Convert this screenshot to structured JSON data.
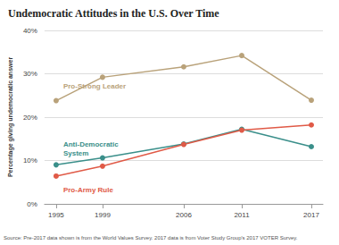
{
  "chart_data": {
    "type": "line",
    "title": "Undemocratic Attitudes in the U.S. Over Time",
    "y_label": "Percentage giving undemocratic answer",
    "source": "Source: Pre-2017 data shown is from the World Values Survey. 2017 data is from Voter Study Group's 2017 VOTER Survey.",
    "x": [
      1995,
      1999,
      2006,
      2011,
      2017
    ],
    "series": [
      {
        "name": "Pro-Strong Leader",
        "color": "#b9a27a",
        "values": [
          23.8,
          29.2,
          31.6,
          34.2,
          23.9
        ]
      },
      {
        "name": "Anti-Democratic System",
        "color": "#3a8f8a",
        "values": [
          9.0,
          10.6,
          13.8,
          17.2,
          13.2
        ]
      },
      {
        "name": "Pro-Army Rule",
        "color": "#e05a47",
        "values": [
          6.4,
          8.7,
          13.7,
          17.0,
          18.2
        ]
      }
    ],
    "xlim": [
      1994,
      2018
    ],
    "xticks": [
      1995,
      1999,
      2006,
      2011,
      2017
    ],
    "ylim": [
      0,
      40
    ],
    "yticks": [
      {
        "value": 0,
        "label": "0%"
      },
      {
        "value": 10,
        "label": "10%"
      },
      {
        "value": 20,
        "label": "20%"
      },
      {
        "value": 30,
        "label": "30%"
      },
      {
        "value": 40,
        "label": "40%"
      }
    ],
    "grid": true,
    "marker": "circle"
  }
}
